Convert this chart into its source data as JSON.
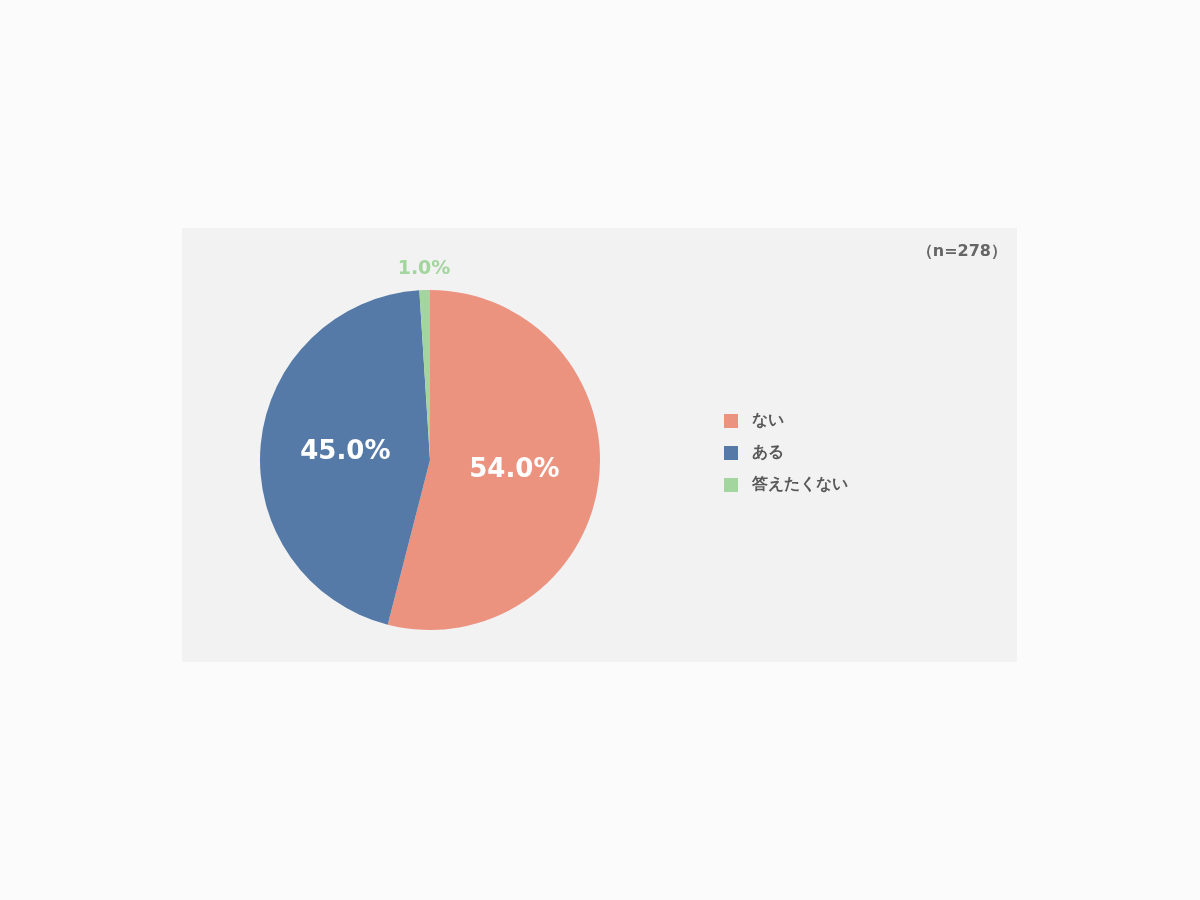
{
  "chart_data": {
    "type": "pie",
    "categories": [
      "ない",
      "ある",
      "答えたくない"
    ],
    "values": [
      54.0,
      45.0,
      1.0
    ],
    "colors": [
      "#ec9380",
      "#557aa7",
      "#a3d59e"
    ],
    "value_labels": [
      "54.0%",
      "45.0%",
      "1.0%"
    ],
    "legend": "right",
    "annotations": [
      "（n=278）"
    ]
  }
}
